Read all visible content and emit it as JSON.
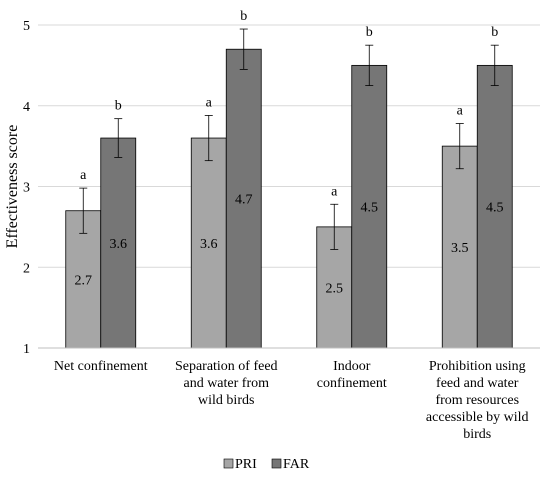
{
  "chart_data": {
    "type": "bar",
    "ylabel": "Effectiveness score",
    "xlabel": "",
    "ylim": [
      1,
      5
    ],
    "yticks": [
      "1",
      "2",
      "3",
      "4",
      "5"
    ],
    "grid": true,
    "legend_position": "bottom-center",
    "categories": [
      [
        "Net confinement"
      ],
      [
        "Separation of feed",
        "and water from",
        "wild birds"
      ],
      [
        "Indoor",
        "confinement"
      ],
      [
        "Prohibition using",
        "feed and water",
        "from resources",
        "accessible by wild",
        "birds"
      ]
    ],
    "series": [
      {
        "name": "PRI",
        "color": "#a6a6a6",
        "values": [
          2.7,
          3.6,
          2.5,
          3.5
        ],
        "value_labels": [
          "2.7",
          "3.6",
          "2.5",
          "3.5"
        ],
        "error": [
          0.28,
          0.28,
          0.28,
          0.28
        ],
        "significance": [
          "a",
          "a",
          "a",
          "a"
        ]
      },
      {
        "name": "FAR",
        "color": "#767676",
        "values": [
          3.6,
          4.7,
          4.5,
          4.5
        ],
        "value_labels": [
          "3.6",
          "4.7",
          "4.5",
          "4.5"
        ],
        "error": [
          0.24,
          0.25,
          0.25,
          0.25
        ],
        "significance": [
          "b",
          "b",
          "b",
          "b"
        ]
      }
    ]
  }
}
